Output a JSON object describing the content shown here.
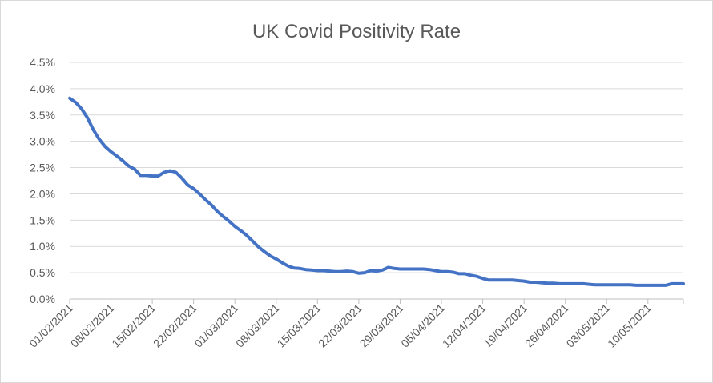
{
  "chart_data": {
    "type": "line",
    "title": "UK Covid Positivity Rate",
    "x_tick_labels": [
      "01/02/2021",
      "08/02/2021",
      "15/02/2021",
      "22/02/2021",
      "01/03/2021",
      "08/03/2021",
      "15/03/2021",
      "22/03/2021",
      "29/03/2021",
      "05/04/2021",
      "12/04/2021",
      "19/04/2021",
      "26/04/2021",
      "03/05/2021",
      "10/05/2021"
    ],
    "y_tick_labels": [
      "0.0%",
      "0.5%",
      "1.0%",
      "1.5%",
      "2.0%",
      "2.5%",
      "3.0%",
      "3.5%",
      "4.0%",
      "4.5%"
    ],
    "ylim": [
      0,
      4.5
    ],
    "x_range": [
      "01/02/2021",
      "16/05/2021"
    ],
    "grid": true,
    "series_color": "#4472c4",
    "series": [
      {
        "x": [
          "01/02/2021",
          "02/02/2021",
          "03/02/2021",
          "04/02/2021",
          "05/02/2021",
          "06/02/2021",
          "07/02/2021",
          "08/02/2021",
          "09/02/2021",
          "10/02/2021",
          "11/02/2021",
          "12/02/2021",
          "13/02/2021",
          "14/02/2021",
          "15/02/2021",
          "16/02/2021",
          "17/02/2021",
          "18/02/2021",
          "19/02/2021",
          "20/02/2021",
          "21/02/2021",
          "22/02/2021",
          "23/02/2021",
          "24/02/2021",
          "25/02/2021",
          "26/02/2021",
          "27/02/2021",
          "28/02/2021",
          "01/03/2021",
          "02/03/2021",
          "03/03/2021",
          "04/03/2021",
          "05/03/2021",
          "06/03/2021",
          "07/03/2021",
          "08/03/2021",
          "09/03/2021",
          "10/03/2021",
          "11/03/2021",
          "12/03/2021",
          "13/03/2021",
          "14/03/2021",
          "15/03/2021",
          "16/03/2021",
          "17/03/2021",
          "18/03/2021",
          "19/03/2021",
          "20/03/2021",
          "21/03/2021",
          "22/03/2021",
          "23/03/2021",
          "24/03/2021",
          "25/03/2021",
          "26/03/2021",
          "27/03/2021",
          "28/03/2021",
          "29/03/2021",
          "30/03/2021",
          "31/03/2021",
          "01/04/2021",
          "02/04/2021",
          "03/04/2021",
          "04/04/2021",
          "05/04/2021",
          "06/04/2021",
          "07/04/2021",
          "08/04/2021",
          "09/04/2021",
          "10/04/2021",
          "11/04/2021",
          "12/04/2021",
          "13/04/2021",
          "14/04/2021",
          "15/04/2021",
          "16/04/2021",
          "17/04/2021",
          "18/04/2021",
          "19/04/2021",
          "20/04/2021",
          "21/04/2021",
          "22/04/2021",
          "23/04/2021",
          "24/04/2021",
          "25/04/2021",
          "26/04/2021",
          "27/04/2021",
          "28/04/2021",
          "29/04/2021",
          "30/04/2021",
          "01/05/2021",
          "02/05/2021",
          "03/05/2021",
          "04/05/2021",
          "05/05/2021",
          "06/05/2021",
          "07/05/2021",
          "08/05/2021",
          "09/05/2021",
          "10/05/2021",
          "11/05/2021",
          "12/05/2021",
          "13/05/2021",
          "14/05/2021",
          "15/05/2021",
          "16/05/2021"
        ],
        "values": [
          3.82,
          3.74,
          3.62,
          3.45,
          3.22,
          3.04,
          2.9,
          2.8,
          2.72,
          2.63,
          2.53,
          2.47,
          2.35,
          2.35,
          2.34,
          2.34,
          2.41,
          2.44,
          2.41,
          2.3,
          2.17,
          2.1,
          2.0,
          1.89,
          1.79,
          1.67,
          1.57,
          1.48,
          1.38,
          1.3,
          1.21,
          1.1,
          0.99,
          0.9,
          0.82,
          0.76,
          0.69,
          0.63,
          0.59,
          0.58,
          0.56,
          0.55,
          0.54,
          0.54,
          0.53,
          0.52,
          0.52,
          0.53,
          0.52,
          0.49,
          0.5,
          0.54,
          0.53,
          0.55,
          0.6,
          0.58,
          0.57,
          0.57,
          0.57,
          0.57,
          0.57,
          0.56,
          0.54,
          0.52,
          0.52,
          0.51,
          0.48,
          0.48,
          0.45,
          0.43,
          0.39,
          0.36,
          0.36,
          0.36,
          0.36,
          0.36,
          0.35,
          0.34,
          0.32,
          0.32,
          0.31,
          0.3,
          0.3,
          0.29,
          0.29,
          0.29,
          0.29,
          0.29,
          0.28,
          0.27,
          0.27,
          0.27,
          0.27,
          0.27,
          0.27,
          0.27,
          0.26,
          0.26,
          0.26,
          0.26,
          0.26,
          0.26,
          0.29,
          0.29,
          0.29
        ]
      }
    ]
  }
}
